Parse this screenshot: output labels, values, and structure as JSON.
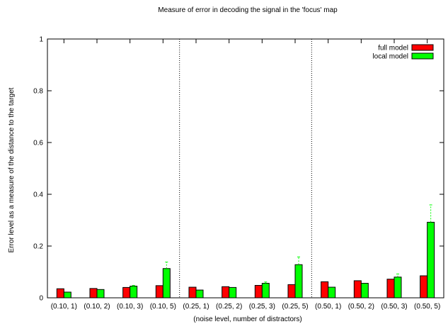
{
  "chart_data": {
    "type": "bar",
    "title": "Measure of error in decoding the signal in the 'focus' map",
    "xlabel": "(noise level, number of distractors)",
    "ylabel": "Error level as a measure of the distance to the target",
    "ylim": [
      0,
      1
    ],
    "yticks": [
      "0",
      "0.2",
      "0.4",
      "0.6",
      "0.8",
      "1"
    ],
    "grid": false,
    "legend_position": "top-right",
    "categories": [
      "(0.10, 1)",
      "(0.10, 2)",
      "(0.10, 3)",
      "(0.10, 5)",
      "(0.25, 1)",
      "(0.25, 2)",
      "(0.25, 3)",
      "(0.25, 5)",
      "(0.50, 1)",
      "(0.50, 2)",
      "(0.50, 3)",
      "(0.50, 5)"
    ],
    "series": [
      {
        "name": "full model",
        "color": "#ff0000",
        "values": [
          0.035,
          0.036,
          0.04,
          0.047,
          0.041,
          0.043,
          0.048,
          0.051,
          0.062,
          0.066,
          0.072,
          0.085
        ],
        "errors": [
          0,
          0,
          0,
          0,
          0,
          0,
          0,
          0,
          0,
          0,
          0,
          0
        ]
      },
      {
        "name": "local model",
        "color": "#00ff00",
        "values": [
          0.022,
          0.032,
          0.045,
          0.113,
          0.03,
          0.04,
          0.056,
          0.128,
          0.041,
          0.056,
          0.08,
          0.292
        ],
        "errors": [
          0,
          0,
          0.003,
          0.025,
          0,
          0,
          0.005,
          0.03,
          0,
          0,
          0.012,
          0.067
        ]
      }
    ],
    "group_separators_after": [
      3,
      7
    ]
  }
}
